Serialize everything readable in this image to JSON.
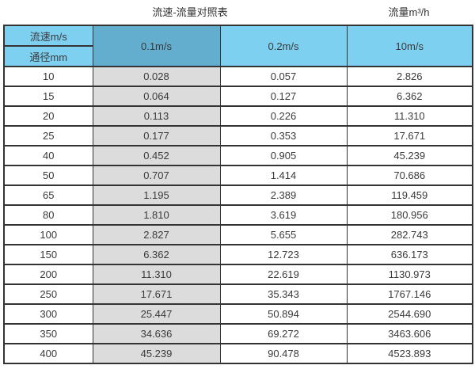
{
  "page": {
    "title_left": "流速-流量对照表",
    "title_right": "流量m³/h"
  },
  "table": {
    "header": {
      "velocity_label": "流速m/s",
      "diameter_label": "通径mm",
      "columns": [
        "0.1m/s",
        "0.2m/s",
        "10m/s"
      ]
    },
    "rows": [
      [
        "10",
        "0.028",
        "0.057",
        "2.826"
      ],
      [
        "15",
        "0.064",
        "0.127",
        "6.362"
      ],
      [
        "20",
        "0.113",
        "0.226",
        "11.310"
      ],
      [
        "25",
        "0.177",
        "0.353",
        "17.671"
      ],
      [
        "40",
        "0.452",
        "0.905",
        "45.239"
      ],
      [
        "50",
        "0.707",
        "1.414",
        "70.686"
      ],
      [
        "65",
        "1.195",
        "2.389",
        "119.459"
      ],
      [
        "80",
        "1.810",
        "3.619",
        "180.956"
      ],
      [
        "100",
        "2.827",
        "5.655",
        "282.743"
      ],
      [
        "150",
        "6.362",
        "12.723",
        "636.173"
      ],
      [
        "200",
        "11.310",
        "22.619",
        "1130.973"
      ],
      [
        "250",
        "17.671",
        "35.343",
        "1767.146"
      ],
      [
        "300",
        "25.447",
        "50.894",
        "2544.690"
      ],
      [
        "350",
        "34.636",
        "69.272",
        "3463.606"
      ],
      [
        "400",
        "45.239",
        "90.478",
        "4523.893"
      ]
    ]
  },
  "colors": {
    "header_light_blue": "#7ed0f1",
    "header_dark_blue": "#63aecf",
    "gray_column": "#dcdcdc",
    "border": "#333333",
    "text": "#3a3a3a"
  },
  "chart_data": {
    "type": "table",
    "title": "流速-流量对照表",
    "value_unit_label": "流量m³/h",
    "row_header": "通径mm",
    "column_header": "流速m/s",
    "columns": [
      "0.1m/s",
      "0.2m/s",
      "10m/s"
    ],
    "diameters_mm": [
      10,
      15,
      20,
      25,
      40,
      50,
      65,
      80,
      100,
      150,
      200,
      250,
      300,
      350,
      400
    ],
    "series": [
      {
        "name": "0.1m/s",
        "values": [
          0.028,
          0.064,
          0.113,
          0.177,
          0.452,
          0.707,
          1.195,
          1.81,
          2.827,
          6.362,
          11.31,
          17.671,
          25.447,
          34.636,
          45.239
        ]
      },
      {
        "name": "0.2m/s",
        "values": [
          0.057,
          0.127,
          0.226,
          0.353,
          0.905,
          1.414,
          2.389,
          3.619,
          5.655,
          12.723,
          22.619,
          35.343,
          50.894,
          69.272,
          90.478
        ]
      },
      {
        "name": "10m/s",
        "values": [
          2.826,
          6.362,
          11.31,
          17.671,
          45.239,
          70.686,
          119.459,
          180.956,
          282.743,
          636.173,
          1130.973,
          1767.146,
          2544.69,
          3463.606,
          4523.893
        ]
      }
    ]
  }
}
